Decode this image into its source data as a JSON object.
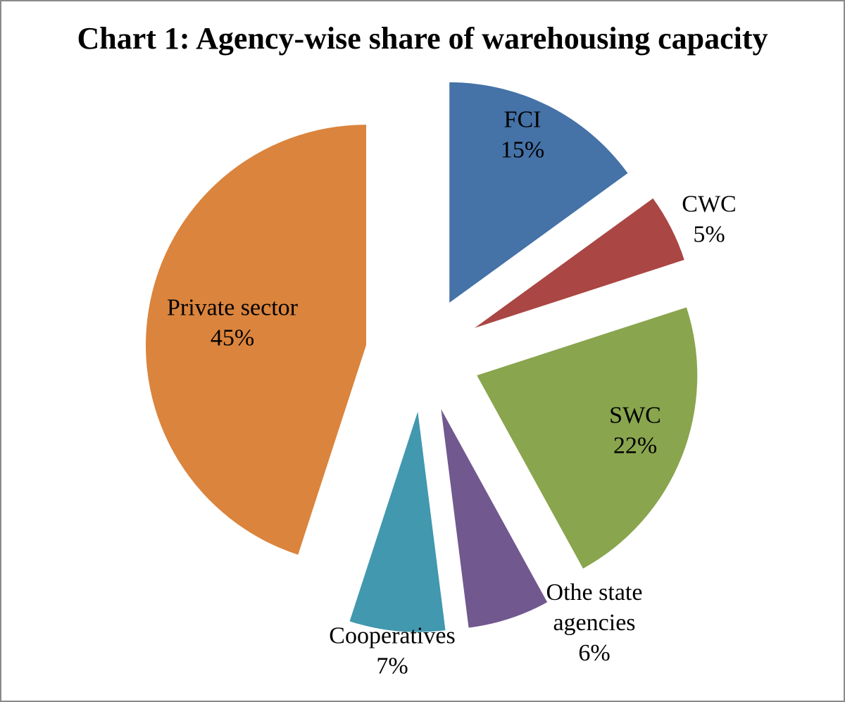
{
  "chart_data": {
    "type": "pie",
    "title": "Chart 1: Agency-wise share of warehousing capacity",
    "exploded": true,
    "slices": [
      {
        "label": "FCI",
        "value": 15,
        "color": "#4572A7"
      },
      {
        "label": "CWC",
        "value": 5,
        "color": "#AA4643"
      },
      {
        "label": "SWC",
        "value": 22,
        "color": "#89A54E"
      },
      {
        "label": "Othe state agencies",
        "value": 6,
        "color": "#71588F"
      },
      {
        "label": "Cooperatives",
        "value": 7,
        "color": "#4198AF"
      },
      {
        "label": "Private sector",
        "value": 45,
        "color": "#DB843D"
      }
    ],
    "data_labels": [
      [
        "FCI",
        "15%"
      ],
      [
        "CWC",
        "5%"
      ],
      [
        "SWC",
        "22%"
      ],
      [
        "Othe state",
        "agencies",
        "6%"
      ],
      [
        "Cooperatives",
        "7%"
      ],
      [
        "Private sector",
        "45%"
      ]
    ]
  }
}
